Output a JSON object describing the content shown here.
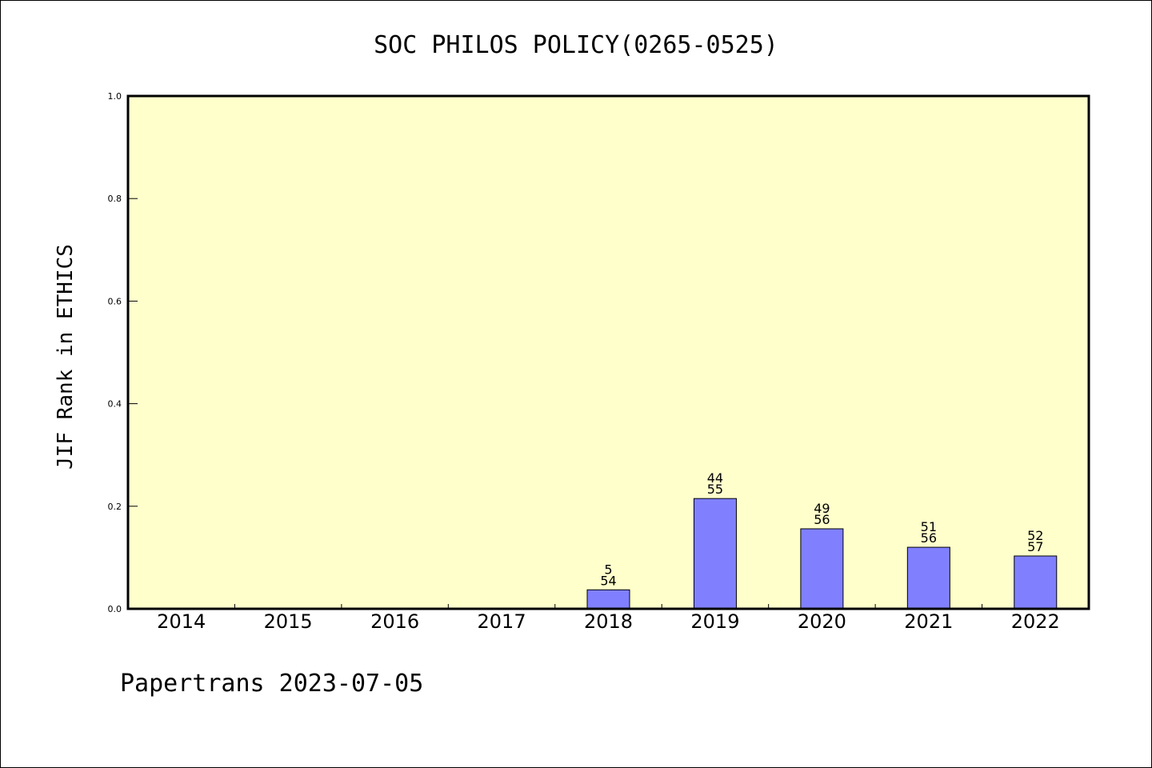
{
  "chart_data": {
    "type": "bar",
    "title": "SOC PHILOS POLICY(0265-0525)",
    "ylabel": "JIF Rank in ETHICS",
    "xlabel": "",
    "ylim": [
      0,
      1.0
    ],
    "yticks": [
      "0.0",
      "0.2",
      "0.4",
      "0.6",
      "0.8",
      "1.0"
    ],
    "categories": [
      "2014",
      "2015",
      "2016",
      "2017",
      "2018",
      "2019",
      "2020",
      "2021",
      "2022"
    ],
    "values": [
      0,
      0,
      0,
      0,
      0.037,
      0.215,
      0.156,
      0.12,
      0.103
    ],
    "ranks": [
      "",
      "",
      "",
      "",
      "5",
      "44",
      "49",
      "51",
      "52"
    ],
    "totals": [
      "",
      "",
      "",
      "",
      "54",
      "55",
      "56",
      "56",
      "57"
    ],
    "plot_background": "#ffffcc",
    "bar_color": "#8080ff",
    "grid": false,
    "legend": "none"
  },
  "footer": "Papertrans 2023-07-05"
}
